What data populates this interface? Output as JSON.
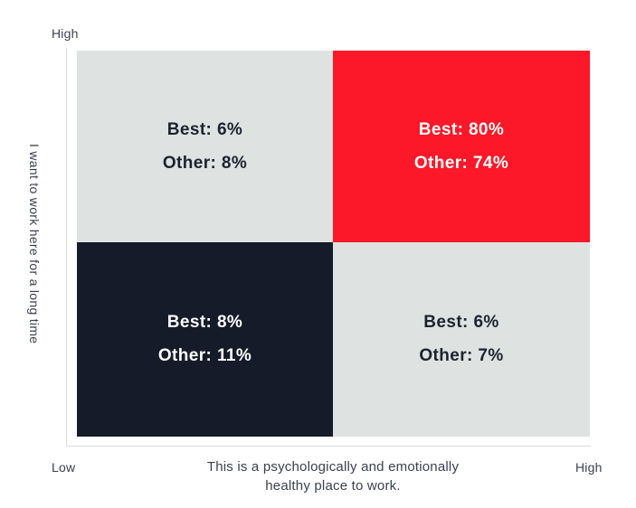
{
  "colors": {
    "background": "#ffffff",
    "quadrant_gray": "#dee2e1",
    "quadrant_red": "#fc1828",
    "quadrant_dark": "#161b29",
    "axis_line": "#d9dddd",
    "axis_text": "#3a4150",
    "text_on_light": "#1c2230",
    "text_on_dark": "#ffffff"
  },
  "chart_data": {
    "type": "heatmap",
    "subtype": "2x2-quadrant-matrix",
    "title": "",
    "x_axis": {
      "label": "This is a psychologically and emotionally healthy place to work.",
      "label_line1": "This is a psychologically and emotionally",
      "label_line2": "healthy place to work.",
      "low_label": "Low",
      "high_label": "High"
    },
    "y_axis": {
      "label": "I want to work here for a long time",
      "high_label": "High"
    },
    "series_names": [
      "Best",
      "Other"
    ],
    "legend": "none",
    "quadrants": [
      {
        "position": "top-left",
        "x": "low",
        "y": "high",
        "best": 6,
        "other": 8,
        "best_label": "Best: 6%",
        "other_label": "Other: 8%",
        "bg_color": "#dee2e1",
        "text_color": "#1c2230"
      },
      {
        "position": "top-right",
        "x": "high",
        "y": "high",
        "best": 80,
        "other": 74,
        "best_label": "Best: 80%",
        "other_label": "Other: 74%",
        "bg_color": "#fc1828",
        "text_color": "#ffffff"
      },
      {
        "position": "bottom-left",
        "x": "low",
        "y": "low",
        "best": 8,
        "other": 11,
        "best_label": "Best: 8%",
        "other_label": "Other: 11%",
        "bg_color": "#161b29",
        "text_color": "#ffffff"
      },
      {
        "position": "bottom-right",
        "x": "high",
        "y": "low",
        "best": 6,
        "other": 7,
        "best_label": "Best: 6%",
        "other_label": "Other: 7%",
        "bg_color": "#dee2e1",
        "text_color": "#1c2230"
      }
    ]
  }
}
